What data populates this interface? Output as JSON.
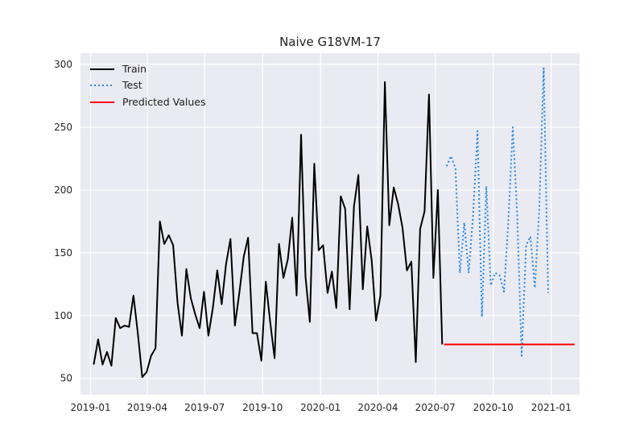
{
  "chart_data": {
    "type": "line",
    "title": "Naive G18VM-17",
    "xlabel": "",
    "ylabel": "",
    "x_range": [
      "2018-12-16",
      "2021-02-15"
    ],
    "ylim": [
      37,
      309
    ],
    "grid": true,
    "background": "#EAEAF2",
    "legend_position": "top-left",
    "x_ticks": [
      {
        "date": "2019-01-01",
        "label": "2019-01"
      },
      {
        "date": "2019-04-01",
        "label": "2019-04"
      },
      {
        "date": "2019-07-01",
        "label": "2019-07"
      },
      {
        "date": "2019-10-01",
        "label": "2019-10"
      },
      {
        "date": "2020-01-01",
        "label": "2020-01"
      },
      {
        "date": "2020-04-01",
        "label": "2020-04"
      },
      {
        "date": "2020-07-01",
        "label": "2020-07"
      },
      {
        "date": "2020-10-01",
        "label": "2020-10"
      },
      {
        "date": "2021-01-01",
        "label": "2021-01"
      }
    ],
    "y_ticks": [
      {
        "value": 50,
        "label": "50"
      },
      {
        "value": 100,
        "label": "100"
      },
      {
        "value": 150,
        "label": "150"
      },
      {
        "value": 200,
        "label": "200"
      },
      {
        "value": 250,
        "label": "250"
      },
      {
        "value": 300,
        "label": "300"
      }
    ],
    "series": [
      {
        "name": "Train",
        "color": "#000000",
        "style": "solid",
        "points": [
          [
            "2019-01-06",
            61
          ],
          [
            "2019-01-13",
            81
          ],
          [
            "2019-01-20",
            61
          ],
          [
            "2019-01-27",
            71
          ],
          [
            "2019-02-03",
            60
          ],
          [
            "2019-02-10",
            98
          ],
          [
            "2019-02-17",
            90
          ],
          [
            "2019-02-24",
            92
          ],
          [
            "2019-03-03",
            91
          ],
          [
            "2019-03-10",
            116
          ],
          [
            "2019-03-17",
            86
          ],
          [
            "2019-03-24",
            51
          ],
          [
            "2019-03-31",
            55
          ],
          [
            "2019-04-07",
            68
          ],
          [
            "2019-04-14",
            74
          ],
          [
            "2019-04-21",
            175
          ],
          [
            "2019-04-28",
            157
          ],
          [
            "2019-05-05",
            164
          ],
          [
            "2019-05-12",
            156
          ],
          [
            "2019-05-19",
            110
          ],
          [
            "2019-05-26",
            84
          ],
          [
            "2019-06-02",
            137
          ],
          [
            "2019-06-09",
            114
          ],
          [
            "2019-06-16",
            101
          ],
          [
            "2019-06-23",
            90
          ],
          [
            "2019-06-30",
            119
          ],
          [
            "2019-07-07",
            84
          ],
          [
            "2019-07-14",
            106
          ],
          [
            "2019-07-21",
            136
          ],
          [
            "2019-07-28",
            109
          ],
          [
            "2019-08-04",
            141
          ],
          [
            "2019-08-11",
            161
          ],
          [
            "2019-08-18",
            92
          ],
          [
            "2019-08-25",
            118
          ],
          [
            "2019-09-01",
            147
          ],
          [
            "2019-09-08",
            162
          ],
          [
            "2019-09-15",
            86
          ],
          [
            "2019-09-22",
            86
          ],
          [
            "2019-09-29",
            64
          ],
          [
            "2019-10-06",
            127
          ],
          [
            "2019-10-13",
            95
          ],
          [
            "2019-10-20",
            66
          ],
          [
            "2019-10-27",
            157
          ],
          [
            "2019-11-03",
            130
          ],
          [
            "2019-11-10",
            145
          ],
          [
            "2019-11-17",
            178
          ],
          [
            "2019-11-24",
            116
          ],
          [
            "2019-12-01",
            244
          ],
          [
            "2019-12-08",
            131
          ],
          [
            "2019-12-15",
            95
          ],
          [
            "2019-12-22",
            221
          ],
          [
            "2019-12-29",
            152
          ],
          [
            "2020-01-05",
            156
          ],
          [
            "2020-01-12",
            118
          ],
          [
            "2020-01-19",
            135
          ],
          [
            "2020-01-26",
            106
          ],
          [
            "2020-02-02",
            195
          ],
          [
            "2020-02-09",
            185
          ],
          [
            "2020-02-16",
            105
          ],
          [
            "2020-02-23",
            187
          ],
          [
            "2020-03-01",
            212
          ],
          [
            "2020-03-08",
            121
          ],
          [
            "2020-03-15",
            171
          ],
          [
            "2020-03-22",
            144
          ],
          [
            "2020-03-29",
            96
          ],
          [
            "2020-04-05",
            116
          ],
          [
            "2020-04-12",
            286
          ],
          [
            "2020-04-19",
            172
          ],
          [
            "2020-04-26",
            202
          ],
          [
            "2020-05-03",
            189
          ],
          [
            "2020-05-10",
            170
          ],
          [
            "2020-05-17",
            136
          ],
          [
            "2020-05-24",
            143
          ],
          [
            "2020-05-31",
            63
          ],
          [
            "2020-06-07",
            169
          ],
          [
            "2020-06-14",
            183
          ],
          [
            "2020-06-21",
            276
          ],
          [
            "2020-06-28",
            130
          ],
          [
            "2020-07-05",
            200
          ],
          [
            "2020-07-12",
            77
          ]
        ]
      },
      {
        "name": "Test",
        "color": "#1E88E5",
        "style": "dotted",
        "points": [
          [
            "2020-07-19",
            219
          ],
          [
            "2020-07-26",
            227
          ],
          [
            "2020-08-02",
            217
          ],
          [
            "2020-08-09",
            134
          ],
          [
            "2020-08-16",
            174
          ],
          [
            "2020-08-23",
            134
          ],
          [
            "2020-08-30",
            180
          ],
          [
            "2020-09-06",
            247
          ],
          [
            "2020-09-13",
            99
          ],
          [
            "2020-09-20",
            203
          ],
          [
            "2020-09-27",
            124
          ],
          [
            "2020-10-04",
            134
          ],
          [
            "2020-10-11",
            132
          ],
          [
            "2020-10-18",
            119
          ],
          [
            "2020-10-25",
            175
          ],
          [
            "2020-11-01",
            250
          ],
          [
            "2020-11-08",
            180
          ],
          [
            "2020-11-15",
            68
          ],
          [
            "2020-11-22",
            156
          ],
          [
            "2020-11-29",
            163
          ],
          [
            "2020-12-06",
            122
          ],
          [
            "2020-12-13",
            185
          ],
          [
            "2020-12-20",
            297
          ],
          [
            "2020-12-27",
            118
          ]
        ]
      },
      {
        "name": "Predicted Values",
        "color": "#FF0000",
        "style": "solid",
        "points": [
          [
            "2020-07-15",
            77
          ],
          [
            "2021-02-07",
            77
          ]
        ]
      }
    ]
  }
}
